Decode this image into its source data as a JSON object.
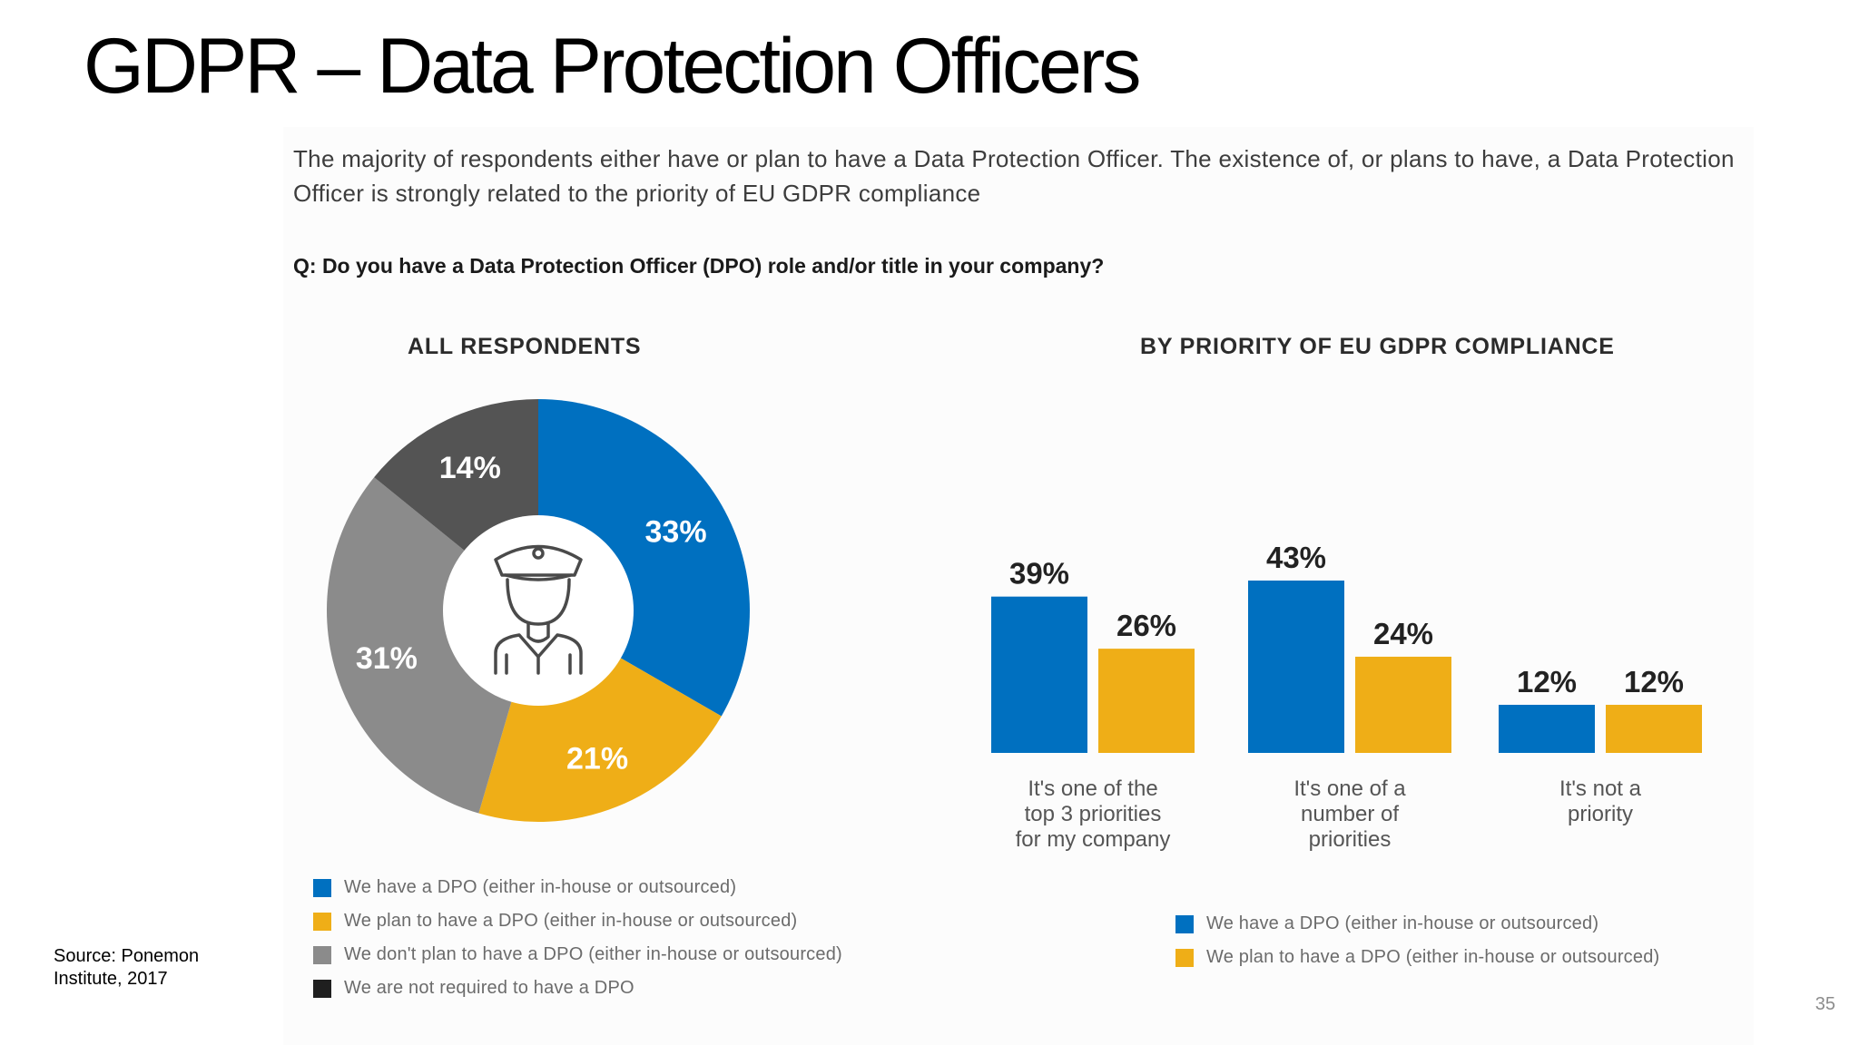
{
  "slide": {
    "title": "GDPR – Data Protection Officers",
    "intro": "The majority of respondents either have or plan to have a Data Protection Officer. The existence of, or plans to have, a Data Protection Officer is strongly related to the priority of EU GDPR compliance",
    "question": "Q: Do you have a Data Protection Officer (DPO) role and/or title in your company?",
    "source_line1": "Source: Ponemon",
    "source_line2": "Institute, 2017",
    "page_number": "35"
  },
  "colors": {
    "blue": "#0070c0",
    "gold": "#efae17",
    "gray": "#8b8b8b",
    "dark": "#545454",
    "black": "#1f1f1f"
  },
  "chart_data": [
    {
      "type": "pie",
      "donut": true,
      "title": "ALL RESPONDENTS",
      "center_icon": "officer-icon",
      "slices": [
        {
          "label": "We have a DPO (either in-house or outsourced)",
          "value": 33,
          "display": "33%",
          "color": "#0070c0"
        },
        {
          "label": "We plan to have a DPO (either in-house or outsourced)",
          "value": 21,
          "display": "21%",
          "color": "#efae17"
        },
        {
          "label": "We don't plan to have a DPO (either in-house or outsourced)",
          "value": 31,
          "display": "31%",
          "color": "#8b8b8b"
        },
        {
          "label": "We are not required to have a DPO",
          "value": 14,
          "display": "14%",
          "color": "#545454"
        }
      ],
      "legend": [
        {
          "label": "We have a DPO (either in-house or outsourced)",
          "color": "#0070c0"
        },
        {
          "label": "We plan to have a DPO (either in-house or outsourced)",
          "color": "#efae17"
        },
        {
          "label": "We don't plan to have a DPO (either in-house or outsourced)",
          "color": "#8b8b8b"
        },
        {
          "label": "We are not required to have a DPO",
          "color": "#1f1f1f"
        }
      ],
      "legend_position": "bottom"
    },
    {
      "type": "bar",
      "title": "BY PRIORITY OF EU GDPR COMPLIANCE",
      "categories": [
        [
          "It's one of the",
          "top 3 priorities",
          "for my company"
        ],
        [
          "It's one of a",
          "number of",
          "priorities"
        ],
        [
          "It's not a",
          "priority"
        ]
      ],
      "series": [
        {
          "name": "We have a DPO (either in-house or outsourced)",
          "values": [
            39,
            43,
            12
          ],
          "labels": [
            "39%",
            "43%",
            "12%"
          ],
          "color": "#0070c0"
        },
        {
          "name": "We plan to have a DPO (either in-house or outsourced)",
          "values": [
            26,
            24,
            12
          ],
          "labels": [
            "26%",
            "24%",
            "12%"
          ],
          "color": "#efae17"
        }
      ],
      "ylim": [
        0,
        43
      ],
      "grid": false,
      "legend_position": "bottom"
    }
  ]
}
